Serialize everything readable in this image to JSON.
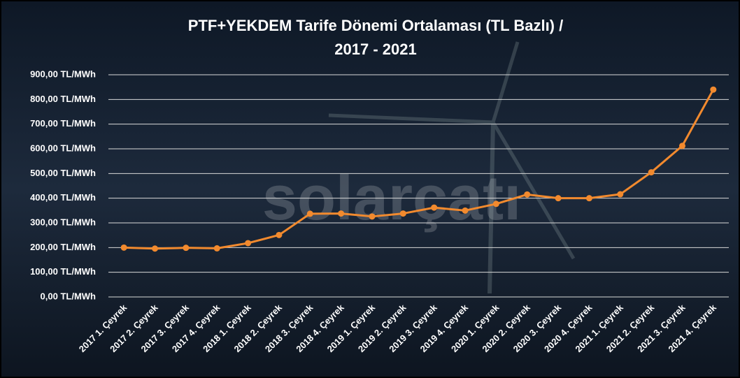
{
  "chart_data": {
    "type": "line",
    "title": [
      "PTF+YEKDEM Tarife Dönemi Ortalaması (TL Bazlı) /",
      "2017 - 2021"
    ],
    "watermark": "solarçatı",
    "categories": [
      "2017 1. Çeyrek",
      "2017 2. Çeyrek",
      "2017 3. Çeyrek",
      "2017 4. Çeyrek",
      "2018 1. Çeyrek",
      "2018 2. Çeyrek",
      "2018 3. Çeyrek",
      "2018 4. Çeyrek",
      "2019 1. Çeyrek",
      "2019 2. Çeyrek",
      "2019 3. Çeyrek",
      "2019 4. Çeyrek",
      "2020 1. Çeyrek",
      "2020 2. Çeyrek",
      "2020 3. Çeyrek",
      "2020 4. Çeyrek",
      "2021 1. Çeyrek",
      "2021 2. Çeyrek",
      "2021 3. Çeyrek",
      "2021 4. Çeyrek"
    ],
    "values": [
      200,
      196,
      199,
      197,
      218,
      251,
      337,
      338,
      326,
      338,
      362,
      350,
      377,
      415,
      400,
      400,
      416,
      505,
      612,
      840
    ],
    "color": "#f28a2e",
    "ylim": [
      0,
      900
    ],
    "yticks": [
      {
        "value": 0,
        "label": "0,00 TL/MWh"
      },
      {
        "value": 100,
        "label": "100,00 TL/MWh"
      },
      {
        "value": 200,
        "label": "200,00 TL/MWh"
      },
      {
        "value": 300,
        "label": "300,00 TL/MWh"
      },
      {
        "value": 400,
        "label": "400,00 TL/MWh"
      },
      {
        "value": 500,
        "label": "500,00 TL/MWh"
      },
      {
        "value": 600,
        "label": "600,00 TL/MWh"
      },
      {
        "value": 700,
        "label": "700,00 TL/MWh"
      },
      {
        "value": 800,
        "label": "800,00 TL/MWh"
      },
      {
        "value": 900,
        "label": "900,00 TL/MWh"
      }
    ],
    "grid": true
  }
}
